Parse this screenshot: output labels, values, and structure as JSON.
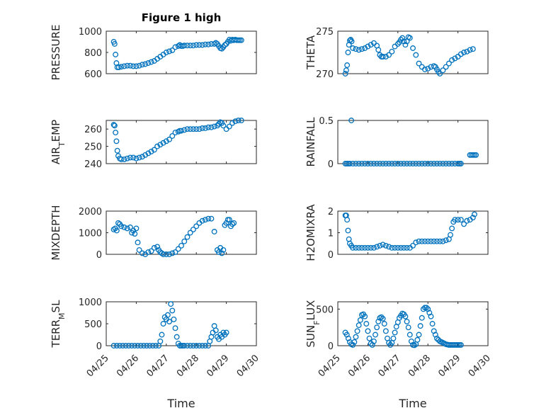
{
  "figure_title": "Figure 1 high",
  "chart_data": [
    {
      "id": "pressure",
      "type": "scatter",
      "title": "Figure 1 high",
      "ylabel": "PRESSURE",
      "ylim": [
        600,
        1000
      ],
      "yticks": [
        "600",
        "800",
        "1000"
      ],
      "ytick_values": [
        600,
        800,
        1000
      ],
      "xlim": [
        0,
        5
      ],
      "xticks": [
        "04/25",
        "04/26",
        "04/27",
        "04/28",
        "04/29",
        "04/30"
      ],
      "color": "#0072bd",
      "grid": true,
      "x": [
        0.25,
        0.28,
        0.31,
        0.34,
        0.37,
        0.42,
        0.5,
        0.6,
        0.7,
        0.8,
        0.9,
        1.0,
        1.1,
        1.2,
        1.3,
        1.4,
        1.5,
        1.6,
        1.7,
        1.8,
        1.9,
        2.0,
        2.1,
        2.2,
        2.3,
        2.4,
        2.45,
        2.5,
        2.55,
        2.6,
        2.7,
        2.8,
        2.9,
        3.0,
        3.1,
        3.2,
        3.3,
        3.4,
        3.5,
        3.6,
        3.65,
        3.7,
        3.75,
        3.8,
        3.85,
        3.9,
        3.95,
        4.0,
        4.05,
        4.1,
        4.15,
        4.2,
        4.25,
        4.3,
        4.35,
        4.4,
        4.45,
        4.5
      ],
      "y": [
        900,
        880,
        780,
        700,
        660,
        660,
        665,
        670,
        675,
        675,
        670,
        670,
        675,
        685,
        690,
        700,
        710,
        720,
        740,
        760,
        780,
        800,
        810,
        820,
        850,
        860,
        870,
        860,
        860,
        865,
        865,
        865,
        865,
        870,
        870,
        870,
        875,
        875,
        880,
        880,
        890,
        880,
        860,
        840,
        835,
        850,
        870,
        880,
        900,
        920,
        910,
        920,
        915,
        920,
        915,
        915,
        915,
        915
      ]
    },
    {
      "id": "theta",
      "type": "scatter",
      "ylabel": "THETA",
      "ylim": [
        270,
        275
      ],
      "yticks": [
        "270",
        "275"
      ],
      "ytick_values": [
        270,
        275
      ],
      "xlim": [
        0,
        5
      ],
      "xticks": [
        "04/25",
        "04/26",
        "04/27",
        "04/28",
        "04/29",
        "04/30"
      ],
      "color": "#0072bd",
      "grid": true,
      "x": [
        0.25,
        0.28,
        0.31,
        0.34,
        0.37,
        0.4,
        0.43,
        0.46,
        0.5,
        0.6,
        0.7,
        0.8,
        0.9,
        1.0,
        1.1,
        1.2,
        1.3,
        1.35,
        1.4,
        1.45,
        1.5,
        1.6,
        1.7,
        1.8,
        1.9,
        2.0,
        2.05,
        2.1,
        2.15,
        2.2,
        2.25,
        2.3,
        2.35,
        2.4,
        2.5,
        2.6,
        2.7,
        2.8,
        2.9,
        3.0,
        3.1,
        3.2,
        3.25,
        3.3,
        3.35,
        3.4,
        3.5,
        3.6,
        3.7,
        3.8,
        3.9,
        4.0,
        4.1,
        4.2,
        4.3,
        4.4,
        4.5
      ],
      "y": [
        270.0,
        270.4,
        271.0,
        272.5,
        273.4,
        273.9,
        274.0,
        273.8,
        273.0,
        272.9,
        272.8,
        272.9,
        273.0,
        273.2,
        273.4,
        273.6,
        273.3,
        272.8,
        272.2,
        272.0,
        272.0,
        272.0,
        272.2,
        272.6,
        273.2,
        273.5,
        273.7,
        274.0,
        274.2,
        273.8,
        273.4,
        273.8,
        274.3,
        274.2,
        273.0,
        272.2,
        271.2,
        270.8,
        270.5,
        270.6,
        270.8,
        270.9,
        270.8,
        270.5,
        270.2,
        270.0,
        270.4,
        270.8,
        271.2,
        271.6,
        271.8,
        272.0,
        272.3,
        272.5,
        272.6,
        272.8,
        272.9
      ]
    },
    {
      "id": "air_temp",
      "type": "scatter",
      "ylabel": "AIR_TEMP",
      "ylim": [
        240,
        265
      ],
      "yticks": [
        "240",
        "250",
        "260"
      ],
      "ytick_values": [
        240,
        250,
        260
      ],
      "xlim": [
        0,
        5
      ],
      "xticks": [
        "04/25",
        "04/26",
        "04/27",
        "04/28",
        "04/29",
        "04/30"
      ],
      "color": "#0072bd",
      "grid": true,
      "x": [
        0.25,
        0.28,
        0.31,
        0.34,
        0.37,
        0.4,
        0.45,
        0.5,
        0.6,
        0.7,
        0.8,
        0.9,
        1.0,
        1.1,
        1.2,
        1.3,
        1.4,
        1.5,
        1.6,
        1.7,
        1.8,
        1.9,
        2.0,
        2.1,
        2.2,
        2.3,
        2.4,
        2.45,
        2.5,
        2.6,
        2.7,
        2.8,
        2.9,
        3.0,
        3.1,
        3.2,
        3.3,
        3.4,
        3.5,
        3.6,
        3.7,
        3.75,
        3.8,
        3.85,
        3.9,
        4.0,
        4.1,
        4.2,
        4.3,
        4.4,
        4.5
      ],
      "y": [
        262.5,
        262.0,
        258.0,
        253.0,
        247.5,
        244.5,
        243.0,
        242.5,
        242.5,
        243.0,
        243.5,
        243.5,
        243.0,
        243.5,
        244.0,
        245.0,
        246.0,
        247.0,
        248.0,
        250.0,
        251.0,
        252.0,
        253.0,
        254.0,
        256.0,
        258.0,
        258.5,
        259.0,
        259.0,
        259.5,
        260.0,
        260.0,
        260.0,
        260.0,
        260.0,
        260.5,
        260.5,
        261.0,
        261.0,
        261.5,
        262.0,
        263.0,
        264.0,
        263.5,
        262.0,
        260.0,
        261.5,
        263.5,
        264.5,
        265.0,
        265.0
      ]
    },
    {
      "id": "rainfall",
      "type": "scatter",
      "ylabel": "RAINFALL",
      "ylim": [
        0,
        0.5
      ],
      "yticks": [
        "0",
        "0.5"
      ],
      "ytick_values": [
        0,
        0.5
      ],
      "xlim": [
        0,
        5
      ],
      "xticks": [
        "04/25",
        "04/26",
        "04/27",
        "04/28",
        "04/29",
        "04/30"
      ],
      "color": "#0072bd",
      "grid": true,
      "x": [
        0.25,
        0.3,
        0.35,
        0.4,
        0.45,
        0.5,
        0.6,
        0.7,
        0.8,
        0.9,
        1.0,
        1.1,
        1.2,
        1.3,
        1.4,
        1.5,
        1.6,
        1.7,
        1.8,
        1.9,
        2.0,
        2.1,
        2.2,
        2.3,
        2.4,
        2.5,
        2.6,
        2.7,
        2.8,
        2.9,
        3.0,
        3.1,
        3.2,
        3.3,
        3.4,
        3.5,
        3.6,
        3.7,
        3.8,
        3.9,
        4.0,
        4.05,
        4.1,
        4.4,
        4.45,
        4.5,
        4.55,
        4.6
      ],
      "y": [
        0,
        0,
        0,
        0,
        0.5,
        0,
        0,
        0,
        0,
        0,
        0,
        0,
        0,
        0,
        0,
        0,
        0,
        0,
        0,
        0,
        0,
        0,
        0,
        0,
        0,
        0,
        0,
        0,
        0,
        0,
        0,
        0,
        0,
        0,
        0,
        0,
        0,
        0,
        0,
        0,
        0,
        0,
        0,
        0.1,
        0.1,
        0.1,
        0.1,
        0.1
      ]
    },
    {
      "id": "mixdepth",
      "type": "scatter",
      "ylabel": "MIXDEPTH",
      "ylim": [
        0,
        2000
      ],
      "yticks": [
        "0",
        "1000",
        "2000"
      ],
      "ytick_values": [
        0,
        1000,
        2000
      ],
      "xlim": [
        0,
        5
      ],
      "xticks": [
        "04/25",
        "04/26",
        "04/27",
        "04/28",
        "04/29",
        "04/30"
      ],
      "color": "#0072bd",
      "grid": true,
      "x": [
        0.25,
        0.3,
        0.35,
        0.4,
        0.45,
        0.5,
        0.6,
        0.7,
        0.8,
        0.85,
        0.9,
        0.95,
        1.0,
        1.05,
        1.1,
        1.2,
        1.3,
        1.4,
        1.5,
        1.6,
        1.7,
        1.75,
        1.8,
        1.85,
        1.9,
        2.0,
        2.1,
        2.2,
        2.3,
        2.4,
        2.5,
        2.6,
        2.7,
        2.8,
        2.9,
        3.0,
        3.1,
        3.2,
        3.3,
        3.4,
        3.5,
        3.6,
        3.7,
        3.75,
        3.8,
        3.85,
        3.9,
        3.95,
        4.0,
        4.05,
        4.1,
        4.15,
        4.2,
        4.25
      ],
      "y": [
        1150,
        1200,
        1100,
        1450,
        1400,
        1300,
        1250,
        1200,
        1250,
        1000,
        1100,
        950,
        1200,
        550,
        200,
        50,
        0,
        100,
        150,
        300,
        350,
        200,
        100,
        50,
        0,
        0,
        0,
        50,
        100,
        250,
        400,
        600,
        800,
        1000,
        1150,
        1300,
        1450,
        1550,
        1600,
        1650,
        1650,
        1050,
        200,
        100,
        300,
        50,
        200,
        1350,
        1450,
        1600,
        1600,
        1300,
        1400,
        1450
      ]
    },
    {
      "id": "h2omixra",
      "type": "scatter",
      "ylabel": "H2OMIXRA",
      "ylim": [
        0,
        2
      ],
      "yticks": [
        "0",
        "1",
        "2"
      ],
      "ytick_values": [
        0,
        1,
        2
      ],
      "xlim": [
        0,
        5
      ],
      "xticks": [
        "04/25",
        "04/26",
        "04/27",
        "04/28",
        "04/29",
        "04/30"
      ],
      "color": "#0072bd",
      "grid": true,
      "x": [
        0.25,
        0.28,
        0.31,
        0.34,
        0.37,
        0.4,
        0.45,
        0.5,
        0.6,
        0.7,
        0.8,
        0.9,
        1.0,
        1.1,
        1.2,
        1.3,
        1.4,
        1.5,
        1.6,
        1.7,
        1.8,
        1.9,
        2.0,
        2.1,
        2.2,
        2.3,
        2.4,
        2.5,
        2.6,
        2.7,
        2.8,
        2.9,
        3.0,
        3.1,
        3.2,
        3.3,
        3.4,
        3.5,
        3.6,
        3.7,
        3.75,
        3.8,
        3.85,
        3.9,
        4.0,
        4.1,
        4.2,
        4.3,
        4.4,
        4.5,
        4.55
      ],
      "y": [
        1.8,
        1.8,
        1.6,
        1.1,
        0.7,
        0.5,
        0.4,
        0.3,
        0.3,
        0.3,
        0.3,
        0.3,
        0.3,
        0.3,
        0.3,
        0.35,
        0.4,
        0.45,
        0.4,
        0.35,
        0.3,
        0.3,
        0.3,
        0.3,
        0.3,
        0.3,
        0.3,
        0.4,
        0.55,
        0.6,
        0.6,
        0.6,
        0.6,
        0.6,
        0.6,
        0.6,
        0.6,
        0.6,
        0.65,
        0.7,
        0.9,
        1.2,
        1.5,
        1.6,
        1.6,
        1.6,
        1.4,
        1.55,
        1.6,
        1.7,
        1.85
      ]
    },
    {
      "id": "terr_msl",
      "type": "scatter",
      "ylabel": "TERR_MSL",
      "ylim": [
        0,
        1000
      ],
      "yticks": [
        "0",
        "500",
        "1000"
      ],
      "ytick_values": [
        0,
        500,
        1000
      ],
      "xlim": [
        0,
        5
      ],
      "xticks": [
        "04/25",
        "04/26",
        "04/27",
        "04/28",
        "04/29",
        "04/30"
      ],
      "color": "#0072bd",
      "grid": true,
      "x": [
        0.25,
        0.35,
        0.45,
        0.55,
        0.65,
        0.75,
        0.85,
        0.95,
        1.05,
        1.15,
        1.25,
        1.35,
        1.45,
        1.55,
        1.65,
        1.75,
        1.8,
        1.85,
        1.9,
        1.95,
        2.0,
        2.05,
        2.1,
        2.15,
        2.2,
        2.25,
        2.3,
        2.35,
        2.4,
        2.45,
        2.5,
        2.55,
        2.6,
        2.7,
        2.8,
        2.9,
        3.0,
        3.1,
        3.2,
        3.3,
        3.4,
        3.45,
        3.5,
        3.55,
        3.6,
        3.65,
        3.7,
        3.75,
        3.8,
        3.85,
        3.9,
        3.95,
        4.0
      ],
      "y": [
        0,
        0,
        0,
        0,
        0,
        0,
        0,
        0,
        0,
        0,
        0,
        0,
        0,
        0,
        0,
        0,
        100,
        250,
        500,
        650,
        600,
        700,
        550,
        950,
        800,
        600,
        400,
        200,
        50,
        0,
        0,
        0,
        0,
        0,
        0,
        0,
        0,
        0,
        0,
        0,
        0,
        100,
        200,
        300,
        450,
        350,
        200,
        150,
        250,
        200,
        300,
        250,
        300
      ]
    },
    {
      "id": "sun_flux",
      "type": "scatter",
      "ylabel": "SUN_FLUX",
      "ylim": [
        0,
        600
      ],
      "yticks": [
        "0",
        "500"
      ],
      "ytick_values": [
        0,
        500
      ],
      "xlim": [
        0,
        5
      ],
      "xticks": [
        "04/25",
        "04/26",
        "04/27",
        "04/28",
        "04/29",
        "04/30"
      ],
      "color": "#0072bd",
      "grid": true,
      "x": [
        0.25,
        0.3,
        0.35,
        0.4,
        0.45,
        0.5,
        0.55,
        0.6,
        0.65,
        0.7,
        0.75,
        0.8,
        0.85,
        0.9,
        0.95,
        1.0,
        1.05,
        1.1,
        1.15,
        1.2,
        1.25,
        1.3,
        1.35,
        1.4,
        1.45,
        1.5,
        1.55,
        1.6,
        1.65,
        1.7,
        1.75,
        1.8,
        1.85,
        1.9,
        1.95,
        2.0,
        2.05,
        2.1,
        2.15,
        2.2,
        2.25,
        2.3,
        2.35,
        2.4,
        2.45,
        2.5,
        2.55,
        2.6,
        2.65,
        2.7,
        2.75,
        2.8,
        2.85,
        2.9,
        2.95,
        3.0,
        3.05,
        3.1,
        3.15,
        3.2,
        3.25,
        3.3,
        3.35,
        3.4,
        3.45,
        3.5,
        3.55,
        3.6,
        3.65,
        3.7,
        3.75,
        3.8,
        3.85,
        3.9,
        3.95,
        4.0,
        4.05,
        4.1
      ],
      "y": [
        180,
        150,
        100,
        50,
        20,
        10,
        50,
        120,
        200,
        280,
        350,
        420,
        430,
        400,
        300,
        200,
        100,
        30,
        10,
        60,
        150,
        250,
        330,
        380,
        390,
        370,
        300,
        200,
        100,
        40,
        10,
        40,
        100,
        180,
        260,
        320,
        380,
        410,
        440,
        430,
        400,
        330,
        250,
        150,
        60,
        10,
        5,
        20,
        80,
        150,
        270,
        380,
        500,
        520,
        520,
        500,
        450,
        400,
        300,
        200,
        150,
        100,
        80,
        60,
        50,
        40,
        30,
        20,
        15,
        10,
        10,
        10,
        10,
        10,
        10,
        10,
        10,
        10
      ]
    }
  ],
  "xlabel": "Time"
}
